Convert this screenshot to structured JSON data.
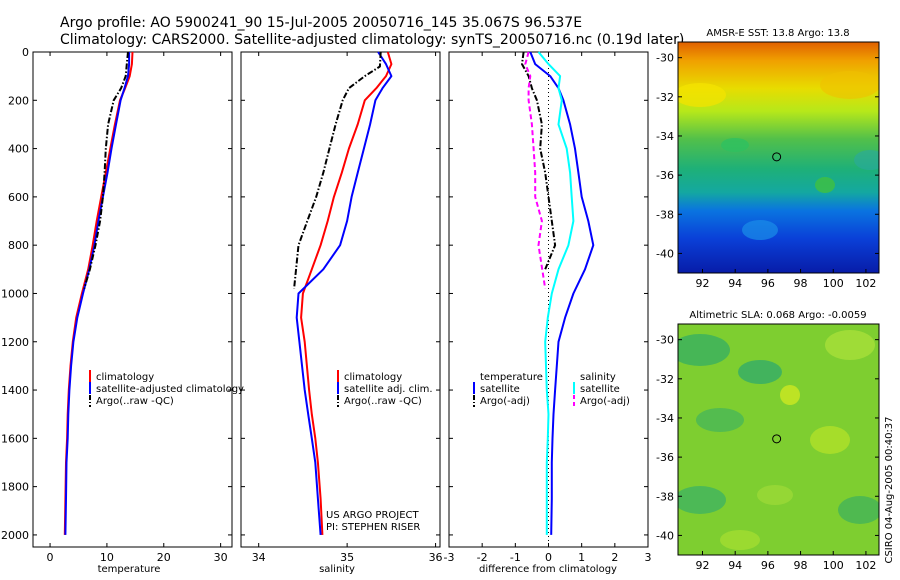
{
  "title": {
    "line1": "Argo profile: AO 5900241_90 15-Jul-2005 20050716_145 35.067S 96.537E",
    "line2": "Climatology: CARS2000. Satellite-adjusted climatology: synTS_20050716.nc (0.19d later)"
  },
  "credit": {
    "project": "US ARGO PROJECT",
    "pi": "PI: STEPHEN RISER",
    "side_stamp": "CSIRO 04-Aug-2005 00:40:37"
  },
  "colors": {
    "climatology": "#ff0000",
    "satellite": "#0000ff",
    "argo": "#000000",
    "diff_temp_satellite": "#0000ff",
    "diff_temp_argo": "#000000",
    "diff_sal_satellite": "#00ffff",
    "diff_sal_argo": "#ff00ff"
  },
  "chart_data": [
    {
      "id": "temperature",
      "type": "line",
      "xlabel": "temperature",
      "xlim": [
        -3,
        32
      ],
      "xticks": [
        0,
        10,
        20,
        30
      ],
      "ylim": [
        0,
        2050
      ],
      "y_reversed": true,
      "yticks": [
        0,
        200,
        400,
        600,
        800,
        1000,
        1200,
        1400,
        1600,
        1800,
        2000
      ],
      "legend": [
        "climatology",
        "satellite-adjusted climatology",
        "Argo(..raw -QC)"
      ],
      "series": [
        {
          "name": "climatology",
          "color": "#ff0000",
          "style": "solid",
          "x": [
            14.5,
            14.4,
            14.0,
            13.2,
            12.3,
            11.4,
            10.6,
            9.8,
            9.0,
            8.2,
            7.5,
            6.7,
            5.6,
            4.6,
            4.0,
            3.6,
            3.3,
            3.1,
            3.0,
            2.8,
            2.7,
            2.6
          ],
          "y": [
            0,
            50,
            100,
            150,
            200,
            300,
            400,
            500,
            600,
            700,
            800,
            900,
            1000,
            1100,
            1200,
            1300,
            1400,
            1500,
            1600,
            1700,
            1850,
            2000
          ]
        },
        {
          "name": "satellite-adjusted climatology",
          "color": "#0000ff",
          "style": "solid",
          "x": [
            13.9,
            13.9,
            13.7,
            13.1,
            12.4,
            11.6,
            10.8,
            10.1,
            9.3,
            8.5,
            7.8,
            6.9,
            5.8,
            4.8,
            4.1,
            3.7,
            3.4,
            3.2,
            3.1,
            2.9,
            2.8,
            2.7
          ],
          "y": [
            0,
            50,
            100,
            150,
            200,
            300,
            400,
            500,
            600,
            700,
            800,
            900,
            1000,
            1100,
            1200,
            1300,
            1400,
            1500,
            1600,
            1700,
            1850,
            2000
          ]
        },
        {
          "name": "Argo(..raw -QC)",
          "color": "#000000",
          "style": "dashdot",
          "x": [
            13.7,
            13.5,
            13.3,
            12.5,
            11.2,
            10.2,
            9.8,
            9.6,
            9.3,
            8.8,
            8.0,
            7.0,
            6.0
          ],
          "y": [
            0,
            50,
            100,
            150,
            200,
            300,
            400,
            500,
            600,
            700,
            800,
            900,
            980
          ]
        }
      ]
    },
    {
      "id": "salinity",
      "type": "line",
      "xlabel": "salinity",
      "xlim": [
        33.8,
        36.05
      ],
      "xticks": [
        34,
        35,
        36
      ],
      "ylim": [
        0,
        2050
      ],
      "y_reversed": true,
      "yticks": [
        0,
        200,
        400,
        600,
        800,
        1000,
        1200,
        1400,
        1600,
        1800,
        2000
      ],
      "legend": [
        "climatology",
        "satellite adj. clim.",
        "Argo(..raw -QC)"
      ],
      "series": [
        {
          "name": "climatology",
          "color": "#ff0000",
          "style": "solid",
          "x": [
            35.46,
            35.5,
            35.44,
            35.33,
            35.2,
            35.12,
            35.02,
            34.94,
            34.85,
            34.78,
            34.7,
            34.6,
            34.5,
            34.48,
            34.52,
            34.57,
            34.6,
            34.64,
            34.67,
            34.7,
            34.72
          ],
          "y": [
            0,
            50,
            100,
            150,
            200,
            300,
            400,
            500,
            600,
            700,
            800,
            900,
            1000,
            1100,
            1200,
            1400,
            1500,
            1600,
            1700,
            1850,
            2000
          ]
        },
        {
          "name": "satellite adj. clim.",
          "color": "#0000ff",
          "style": "solid",
          "x": [
            35.35,
            35.44,
            35.5,
            35.4,
            35.32,
            35.26,
            35.19,
            35.12,
            35.05,
            35.0,
            34.92,
            34.73,
            34.45,
            34.43,
            34.46,
            34.52,
            34.56,
            34.6,
            34.64,
            34.67,
            34.7
          ],
          "y": [
            0,
            50,
            100,
            150,
            200,
            300,
            400,
            500,
            600,
            700,
            800,
            900,
            1000,
            1100,
            1200,
            1400,
            1500,
            1600,
            1700,
            1850,
            2000
          ]
        },
        {
          "name": "Argo(..raw -QC)",
          "color": "#000000",
          "style": "dashdot",
          "x": [
            35.38,
            35.37,
            35.2,
            35.02,
            34.95,
            34.87,
            34.8,
            34.73,
            34.65,
            34.55,
            34.45,
            34.4
          ],
          "y": [
            0,
            60,
            100,
            150,
            200,
            300,
            400,
            500,
            600,
            700,
            800,
            980
          ]
        }
      ]
    },
    {
      "id": "difference",
      "type": "line",
      "xlabel": "difference from climatology",
      "xlim": [
        -3,
        3
      ],
      "xticks": [
        -3,
        -2,
        -1,
        0,
        1,
        2,
        3
      ],
      "ylim": [
        0,
        2050
      ],
      "y_reversed": true,
      "yticks": [
        0,
        200,
        400,
        600,
        800,
        1000,
        1200,
        1400,
        1600,
        1800,
        2000
      ],
      "legend_left": [
        "temperature",
        "satellite",
        "Argo(-adj)"
      ],
      "legend_right": [
        "salinity",
        "satellite",
        "Argo(-adj)"
      ],
      "series": [
        {
          "name": "temperature satellite",
          "color": "#0000ff",
          "style": "solid",
          "x": [
            -0.55,
            -0.4,
            0.05,
            0.3,
            0.45,
            0.65,
            0.8,
            0.9,
            1.0,
            1.2,
            1.35,
            1.1,
            0.75,
            0.5,
            0.3,
            0.2,
            0.15,
            0.12,
            0.1,
            0.1,
            0.08
          ],
          "y": [
            0,
            50,
            100,
            150,
            200,
            300,
            400,
            500,
            600,
            700,
            800,
            900,
            1000,
            1100,
            1200,
            1400,
            1500,
            1600,
            1700,
            1850,
            2000
          ]
        },
        {
          "name": "temperature Argo(-adj)",
          "color": "#000000",
          "style": "dashdot",
          "x": [
            -0.75,
            -0.8,
            -0.6,
            -0.5,
            -0.35,
            -0.2,
            -0.25,
            -0.1,
            0.0,
            0.1,
            0.2,
            -0.1
          ],
          "y": [
            0,
            50,
            100,
            150,
            200,
            300,
            400,
            500,
            600,
            700,
            800,
            900
          ]
        },
        {
          "name": "salinity satellite",
          "color": "#00ffff",
          "style": "solid",
          "x": [
            -0.3,
            0.0,
            0.35,
            0.3,
            0.4,
            0.3,
            0.55,
            0.65,
            0.7,
            0.75,
            0.6,
            0.3,
            0.1,
            -0.02,
            -0.1,
            -0.05,
            0.0,
            -0.02,
            -0.05,
            -0.05,
            -0.05
          ],
          "y": [
            0,
            50,
            100,
            150,
            200,
            300,
            400,
            500,
            600,
            700,
            800,
            900,
            1000,
            1100,
            1200,
            1400,
            1500,
            1600,
            1700,
            1850,
            2000
          ]
        },
        {
          "name": "salinity Argo(-adj)",
          "color": "#ff00ff",
          "style": "dash",
          "x": [
            -0.6,
            -0.7,
            -0.55,
            -0.6,
            -0.6,
            -0.5,
            -0.45,
            -0.4,
            -0.4,
            -0.2,
            -0.3,
            -0.1
          ],
          "y": [
            0,
            50,
            100,
            150,
            200,
            300,
            400,
            500,
            600,
            700,
            800,
            980
          ]
        }
      ]
    },
    {
      "id": "sst_map",
      "type": "heatmap",
      "title": "AMSR-E SST: 13.8 Argo: 13.8",
      "xlim": [
        90.5,
        102.8
      ],
      "ylim": [
        -41,
        -29.2
      ],
      "xticks": [
        92,
        94,
        96,
        98,
        100,
        102
      ],
      "yticks": [
        -30,
        -32,
        -34,
        -36,
        -38,
        -40
      ],
      "float_position": {
        "lon": 96.537,
        "lat": -35.067
      }
    },
    {
      "id": "sla_map",
      "type": "heatmap",
      "title": "Altimetric SLA: 0.068 Argo: -0.0059",
      "xlim": [
        90.5,
        102.8
      ],
      "ylim": [
        -41,
        -29.2
      ],
      "xticks": [
        92,
        94,
        96,
        98,
        100,
        102
      ],
      "yticks": [
        -30,
        -32,
        -34,
        -36,
        -38,
        -40
      ],
      "float_position": {
        "lon": 96.537,
        "lat": -35.067
      }
    }
  ]
}
